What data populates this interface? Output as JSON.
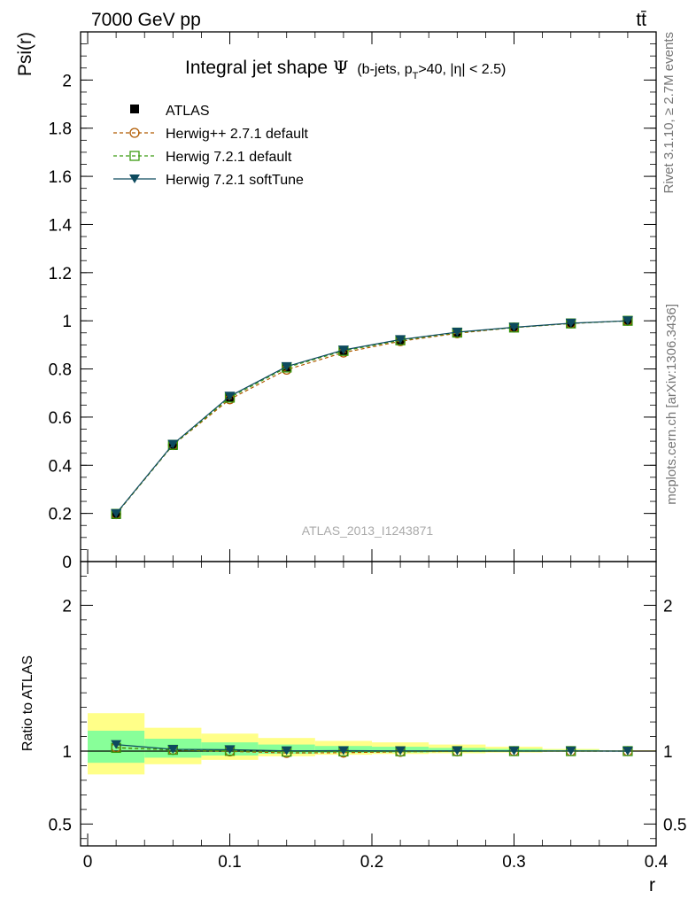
{
  "header": {
    "left": "7000 GeV pp",
    "right": "tt̄"
  },
  "side": {
    "rivet": "Rivet 3.1.10, ≥ 2.7M events",
    "mcplots": "mcplots.cern.ch [arXiv:1306.3436]"
  },
  "chart_data": [
    {
      "type": "line",
      "title": "Integral jet shape",
      "title_symbol": "Ψ",
      "title_cut": "(b-jets, p",
      "title_cut_sub": "T",
      "title_cut_rest": ">40, |η| < 2.5)",
      "ylabel": "Psi(r)",
      "xlabel": "r",
      "watermark": "ATLAS_2013_I1243871",
      "xlim": [
        -0.005,
        0.4
      ],
      "ylim": [
        0,
        2.2
      ],
      "yticks": [
        0,
        0.2,
        0.4,
        0.6,
        0.8,
        1,
        1.2,
        1.4,
        1.6,
        1.8,
        2
      ],
      "ytick_labels": [
        "0",
        "0.2",
        "0.4",
        "0.6",
        "0.8",
        "1",
        "1.2",
        "1.4",
        "1.6",
        "1.8",
        "2"
      ],
      "legend_position": "top-left",
      "x": [
        0.02,
        0.06,
        0.1,
        0.14,
        0.18,
        0.22,
        0.26,
        0.3,
        0.34,
        0.38
      ],
      "series": [
        {
          "name": "ATLAS",
          "color": "#000000",
          "marker": "square-filled",
          "line": "none",
          "values": [
            0.195,
            0.482,
            0.68,
            0.808,
            0.876,
            0.92,
            0.951,
            0.972,
            0.989,
            1.0
          ]
        },
        {
          "name": "Herwig++ 2.7.1 default",
          "color": "#b05a00",
          "marker": "circle-open",
          "line": "dashed",
          "values": [
            0.197,
            0.484,
            0.674,
            0.797,
            0.868,
            0.915,
            0.948,
            0.972,
            0.989,
            1.0
          ]
        },
        {
          "name": "Herwig 7.2.1 default",
          "color": "#3a9a10",
          "marker": "square-open",
          "line": "dashed",
          "values": [
            0.198,
            0.485,
            0.681,
            0.806,
            0.875,
            0.919,
            0.951,
            0.972,
            0.989,
            1.0
          ]
        },
        {
          "name": "Herwig 7.2.1 softTune",
          "color": "#0d4a5e",
          "marker": "triangle-down-filled",
          "line": "solid",
          "values": [
            0.199,
            0.487,
            0.687,
            0.81,
            0.879,
            0.922,
            0.953,
            0.973,
            0.99,
            1.0
          ]
        }
      ]
    },
    {
      "type": "line",
      "ylabel": "Ratio to ATLAS",
      "xlabel": "r",
      "xlim": [
        -0.005,
        0.4
      ],
      "ylim": [
        0.35,
        2.3
      ],
      "xticks": [
        0,
        0.1,
        0.2,
        0.3,
        0.4
      ],
      "xtick_labels": [
        "0",
        "0.1",
        "0.2",
        "0.3",
        "0.4"
      ],
      "yticks": [
        0.5,
        1,
        2
      ],
      "ytick_labels": [
        "0.5",
        "1",
        "2"
      ],
      "bands": {
        "x_edges": [
          0.0,
          0.04,
          0.08,
          0.12,
          0.16,
          0.2,
          0.24,
          0.28,
          0.32,
          0.36,
          0.4
        ],
        "yellow": [
          [
            0.84,
            1.26
          ],
          [
            0.91,
            1.16
          ],
          [
            0.94,
            1.12
          ],
          [
            0.965,
            1.09
          ],
          [
            0.975,
            1.07
          ],
          [
            0.98,
            1.06
          ],
          [
            0.985,
            1.045
          ],
          [
            0.99,
            1.03
          ],
          [
            0.995,
            1.015
          ],
          [
            0.998,
            1.006
          ]
        ],
        "green": [
          [
            0.92,
            1.14
          ],
          [
            0.955,
            1.085
          ],
          [
            0.97,
            1.06
          ],
          [
            0.982,
            1.045
          ],
          [
            0.988,
            1.035
          ],
          [
            0.99,
            1.03
          ],
          [
            0.993,
            1.022
          ],
          [
            0.995,
            1.015
          ],
          [
            0.997,
            1.008
          ],
          [
            0.999,
            1.003
          ]
        ]
      },
      "x": [
        0.02,
        0.06,
        0.1,
        0.14,
        0.18,
        0.22,
        0.26,
        0.3,
        0.34,
        0.38
      ],
      "series": [
        {
          "name": "Herwig++ 2.7.1 default",
          "color": "#b05a00",
          "marker": "circle-open",
          "line": "dashed",
          "values": [
            1.025,
            1.008,
            0.998,
            0.987,
            0.989,
            0.995,
            0.998,
            1.0,
            1.0,
            1.0
          ]
        },
        {
          "name": "Herwig 7.2.1 default",
          "color": "#3a9a10",
          "marker": "square-open",
          "line": "dashed",
          "values": [
            1.022,
            1.009,
            1.002,
            0.996,
            0.998,
            0.999,
            1.0,
            1.0,
            1.0,
            1.0
          ]
        },
        {
          "name": "Herwig 7.2.1 softTune",
          "color": "#0d4a5e",
          "marker": "triangle-down-filled",
          "line": "solid",
          "values": [
            1.045,
            1.012,
            1.01,
            1.002,
            1.003,
            1.002,
            1.002,
            1.001,
            1.001,
            1.0
          ]
        }
      ]
    }
  ]
}
